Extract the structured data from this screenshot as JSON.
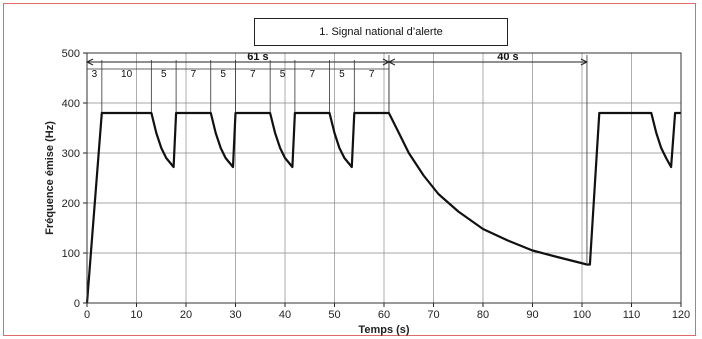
{
  "chart_data": {
    "type": "line",
    "title": "1. Signal national d’alerte",
    "xlabel": "Temps (s)",
    "ylabel": "Fréquence émise (Hz)",
    "xlim": [
      0,
      120
    ],
    "ylim": [
      0,
      500
    ],
    "x_ticks": [
      0,
      10,
      20,
      30,
      40,
      50,
      60,
      70,
      80,
      90,
      100,
      110,
      120
    ],
    "y_ticks": [
      0,
      100,
      200,
      300,
      400,
      500
    ],
    "grid": true,
    "series": [
      {
        "points": [
          [
            0,
            0
          ],
          [
            3,
            380
          ],
          [
            13,
            380
          ],
          [
            14,
            340
          ],
          [
            15,
            310
          ],
          [
            16,
            290
          ],
          [
            17.5,
            272
          ],
          [
            18,
            380
          ],
          [
            25,
            380
          ],
          [
            26,
            340
          ],
          [
            27,
            310
          ],
          [
            28,
            290
          ],
          [
            29.5,
            272
          ],
          [
            30,
            380
          ],
          [
            37,
            380
          ],
          [
            38,
            340
          ],
          [
            39,
            310
          ],
          [
            40,
            290
          ],
          [
            41.5,
            272
          ],
          [
            42,
            380
          ],
          [
            49,
            380
          ],
          [
            50,
            340
          ],
          [
            51,
            310
          ],
          [
            52,
            290
          ],
          [
            53.5,
            272
          ],
          [
            54,
            380
          ],
          [
            61,
            380
          ],
          [
            63,
            340
          ],
          [
            65,
            300
          ],
          [
            68,
            255
          ],
          [
            71,
            218
          ],
          [
            75,
            183
          ],
          [
            80,
            148
          ],
          [
            85,
            125
          ],
          [
            90,
            105
          ],
          [
            95,
            92
          ],
          [
            101,
            77
          ],
          [
            101.6,
            77
          ],
          [
            103.5,
            380
          ],
          [
            114,
            380
          ],
          [
            115,
            340
          ],
          [
            116,
            310
          ],
          [
            117,
            290
          ],
          [
            118,
            272
          ],
          [
            118.8,
            380
          ],
          [
            120,
            380
          ]
        ]
      }
    ],
    "segments": [
      {
        "label": "3",
        "from": 0,
        "to": 3
      },
      {
        "label": "10",
        "from": 3,
        "to": 13
      },
      {
        "label": "5",
        "from": 13,
        "to": 18
      },
      {
        "label": "7",
        "from": 18,
        "to": 25
      },
      {
        "label": "5",
        "from": 25,
        "to": 30
      },
      {
        "label": "7",
        "from": 30,
        "to": 37
      },
      {
        "label": "5",
        "from": 37,
        "to": 42
      },
      {
        "label": "7",
        "from": 42,
        "to": 49
      },
      {
        "label": "5",
        "from": 49,
        "to": 54
      },
      {
        "label": "7",
        "from": 54,
        "to": 61
      }
    ],
    "brackets": [
      {
        "label": "61 s",
        "from": 0,
        "to": 61
      },
      {
        "label": "40 s",
        "from": 61,
        "to": 101
      }
    ]
  }
}
